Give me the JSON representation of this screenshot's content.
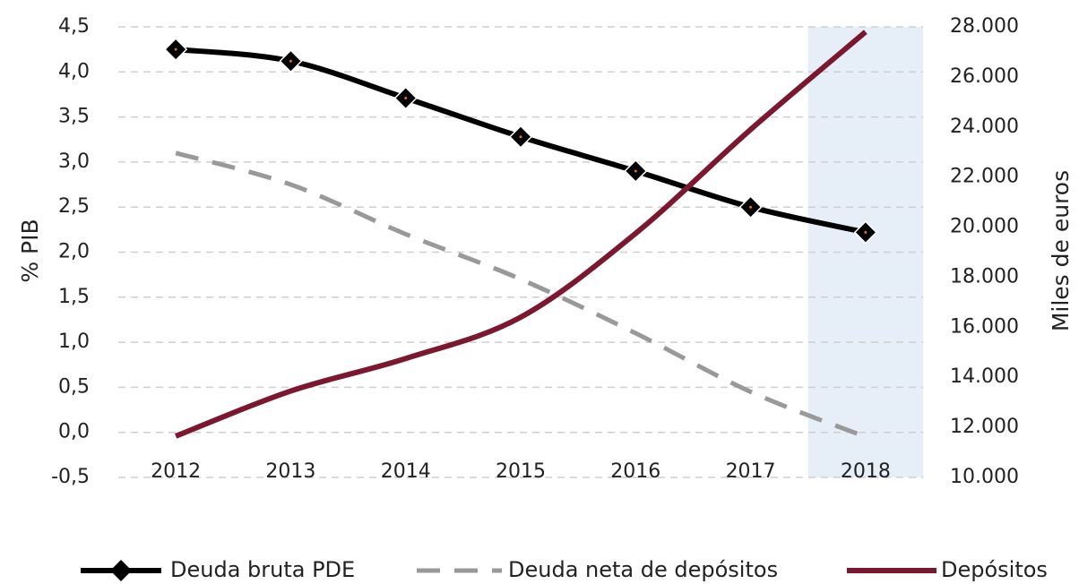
{
  "chart_data": {
    "type": "line",
    "categories": [
      "2012",
      "2013",
      "2014",
      "2015",
      "2016",
      "2017",
      "2018"
    ],
    "series": [
      {
        "name": "Deuda bruta PDE",
        "color": "#000000",
        "marker": "diamond",
        "values": [
          4.25,
          4.12,
          3.71,
          3.28,
          2.9,
          2.5,
          2.22
        ]
      },
      {
        "name": "Deuda neta de depósitos",
        "color": "#999999",
        "dash": true,
        "values": [
          3.1,
          2.75,
          2.2,
          1.7,
          1.1,
          0.45,
          -0.05
        ]
      },
      {
        "name": "Depósitos",
        "color": "#7b1830",
        "axis": "y2",
        "values": [
          11650,
          13450,
          14750,
          16400,
          19750,
          23900,
          27800
        ]
      }
    ],
    "ylabel": "% PIB",
    "y2label": "Miles de euros",
    "ylim": [
      -0.5,
      4.5
    ],
    "yticks": [
      {
        "value": -0.5,
        "label": "-0,5"
      },
      {
        "value": 0,
        "label": "0,0"
      },
      {
        "value": 0.5,
        "label": "0,5"
      },
      {
        "value": 1,
        "label": "1,0"
      },
      {
        "value": 1.5,
        "label": "1,5"
      },
      {
        "value": 2,
        "label": "2,0"
      },
      {
        "value": 2.5,
        "label": "2,5"
      },
      {
        "value": 3,
        "label": "3,0"
      },
      {
        "value": 3.5,
        "label": "3,5"
      },
      {
        "value": 4,
        "label": "4,0"
      },
      {
        "value": 4.5,
        "label": "4,5"
      }
    ],
    "y2lim": [
      10000,
      28000
    ],
    "y2ticks": [
      {
        "value": 10000,
        "label": "10.000"
      },
      {
        "value": 12000,
        "label": "12.000"
      },
      {
        "value": 14000,
        "label": "14.000"
      },
      {
        "value": 16000,
        "label": "16.000"
      },
      {
        "value": 18000,
        "label": "18.000"
      },
      {
        "value": 20000,
        "label": "20.000"
      },
      {
        "value": 22000,
        "label": "22.000"
      },
      {
        "value": 24000,
        "label": "24.000"
      },
      {
        "value": 26000,
        "label": "26.000"
      },
      {
        "value": 28000,
        "label": "28.000"
      }
    ],
    "grid": true,
    "legend": "bottom"
  }
}
